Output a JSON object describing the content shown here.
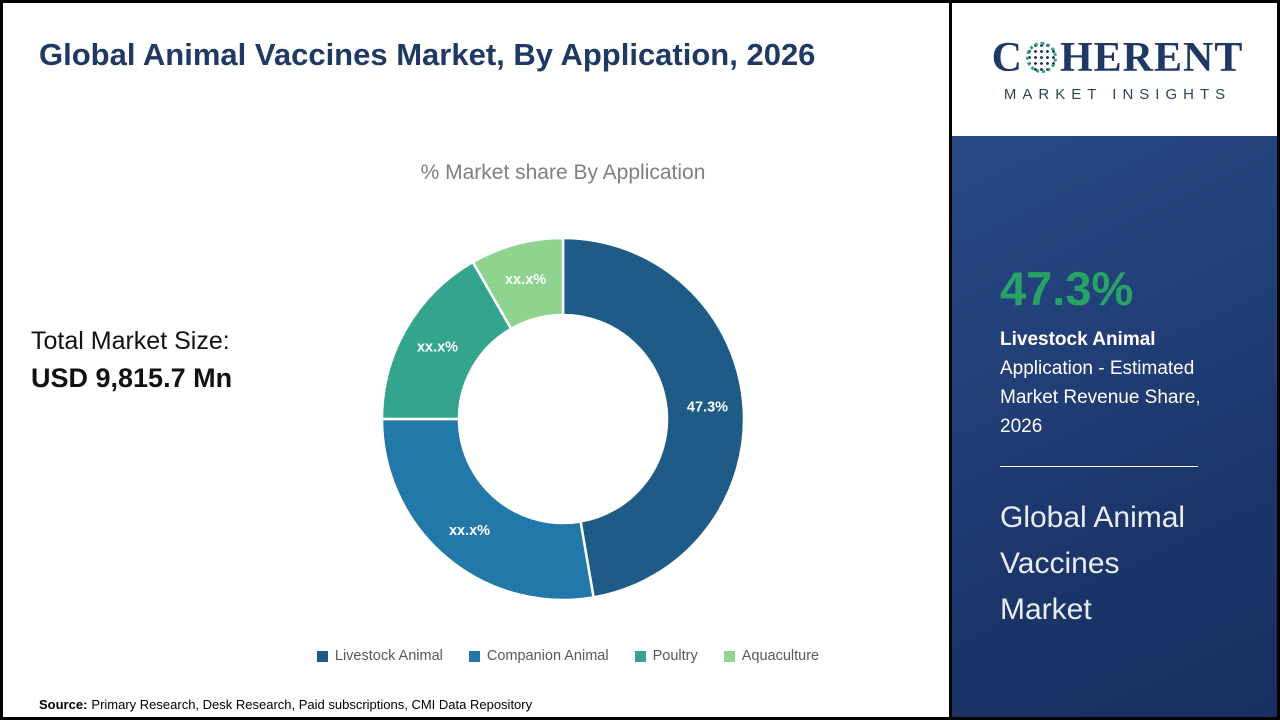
{
  "header": {
    "title": "Global Animal Vaccines Market, By Application, 2026"
  },
  "logo": {
    "part1": "C",
    "part2": "HERENT",
    "tagline": "MARKET INSIGHTS"
  },
  "chart_data": {
    "type": "pie",
    "donut": true,
    "title": "% Market share By Application",
    "categories": [
      "Livestock Animal",
      "Companion Animal",
      "Poultry",
      "Aquaculture"
    ],
    "values": [
      47.3,
      27.7,
      16.7,
      8.3
    ],
    "labels": [
      "47.3%",
      "xx.x%",
      "xx.x%",
      "xx.x%"
    ],
    "colors": [
      "#1e5c87",
      "#2278a8",
      "#34a48e",
      "#8ed48f"
    ],
    "legend_position": "bottom"
  },
  "market_size": {
    "label": "Total Market Size:",
    "value": "USD 9,815.7 Mn"
  },
  "sidebar": {
    "stat_value": "47.3%",
    "stat_label": "Livestock Animal",
    "stat_description": "Application - Estimated Market Revenue Share, 2026",
    "market_name": "Global Animal Vaccines Market",
    "accent_color": "#28a366",
    "background_color": "#1e3a6e"
  },
  "source": {
    "label": "Source:",
    "text": "Primary Research, Desk Research, Paid subscriptions, CMI Data Repository"
  }
}
